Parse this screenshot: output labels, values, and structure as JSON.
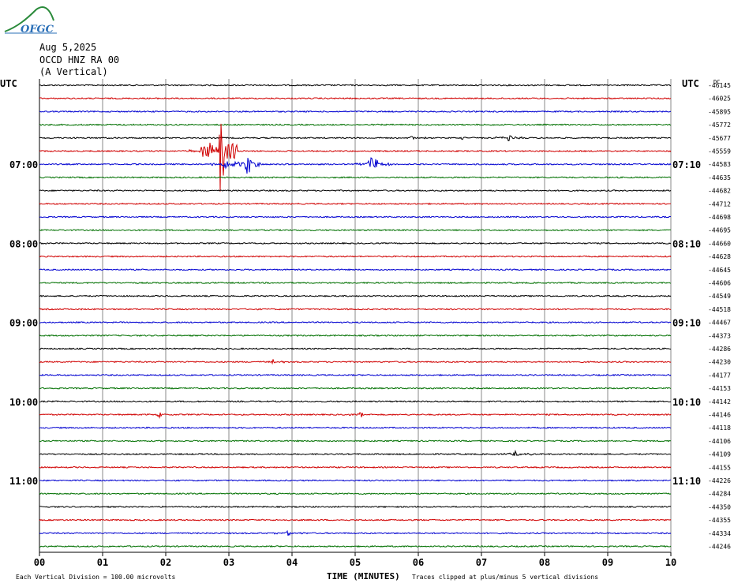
{
  "header": {
    "logo_text": "OFGC",
    "date": "Aug 5,2025",
    "station": "OCCD HNZ RA 00",
    "component": "(A Vertical)"
  },
  "labels": {
    "utc_left": "UTC",
    "utc_right": "UTC",
    "dc": "DC",
    "footer_left": "Each Vertical Division =  100.00 microvolts",
    "footer_center": "TIME (MINUTES)",
    "footer_right": "Traces clipped at plus/minus 5 vertical divisions"
  },
  "chart_data": {
    "type": "line",
    "subtype": "helicorder",
    "x_axis": {
      "label": "TIME (MINUTES)",
      "ticks": [
        "00",
        "01",
        "02",
        "03",
        "04",
        "05",
        "06",
        "07",
        "08",
        "09",
        "10"
      ],
      "range": [
        0,
        10
      ]
    },
    "trace_colors": [
      "#000000",
      "#d00000",
      "#0000d0",
      "#007000"
    ],
    "rows": 36,
    "time_labels_left": [
      {
        "row": 6,
        "label": "07:00"
      },
      {
        "row": 12,
        "label": "08:00"
      },
      {
        "row": 18,
        "label": "09:00"
      },
      {
        "row": 24,
        "label": "10:00"
      },
      {
        "row": 30,
        "label": "11:00"
      }
    ],
    "time_labels_right": [
      {
        "row": 6,
        "label": "07:10"
      },
      {
        "row": 12,
        "label": "08:10"
      },
      {
        "row": 18,
        "label": "09:10"
      },
      {
        "row": 24,
        "label": "10:10"
      },
      {
        "row": 30,
        "label": "11:10"
      }
    ],
    "dc_offsets": [
      "-46145",
      "-46025",
      "-45895",
      "-45772",
      "-45677",
      "-45559",
      "-44583",
      "-44635",
      "-44682",
      "-44712",
      "-44698",
      "-44695",
      "-44660",
      "-44628",
      "-44645",
      "-44606",
      "-44549",
      "-44518",
      "-44467",
      "-44373",
      "-44286",
      "-44230",
      "-44177",
      "-44153",
      "-44142",
      "-44146",
      "-44118",
      "-44106",
      "-44109",
      "-44155",
      "-44226",
      "-44284",
      "-44350",
      "-44355",
      "-44334",
      "-44246"
    ],
    "events": [
      {
        "row": 4,
        "minute": 5.9,
        "amp": 3
      },
      {
        "row": 4,
        "minute": 6.7,
        "amp": 4
      },
      {
        "row": 4,
        "minute": 7.45,
        "amp": 6
      },
      {
        "row": 5,
        "minute": 2.6,
        "amp": 12
      },
      {
        "row": 5,
        "minute": 2.88,
        "amp": 85
      },
      {
        "row": 6,
        "minute": 2.95,
        "amp": 8
      },
      {
        "row": 6,
        "minute": 3.3,
        "amp": 22
      },
      {
        "row": 6,
        "minute": 5.25,
        "amp": 12
      },
      {
        "row": 6,
        "minute": 5.33,
        "amp": 9
      },
      {
        "row": 21,
        "minute": 3.7,
        "amp": 4
      },
      {
        "row": 25,
        "minute": 1.9,
        "amp": 5
      },
      {
        "row": 25,
        "minute": 5.1,
        "amp": 4
      },
      {
        "row": 28,
        "minute": 7.55,
        "amp": 6
      },
      {
        "row": 34,
        "minute": 3.95,
        "amp": 4
      }
    ]
  }
}
